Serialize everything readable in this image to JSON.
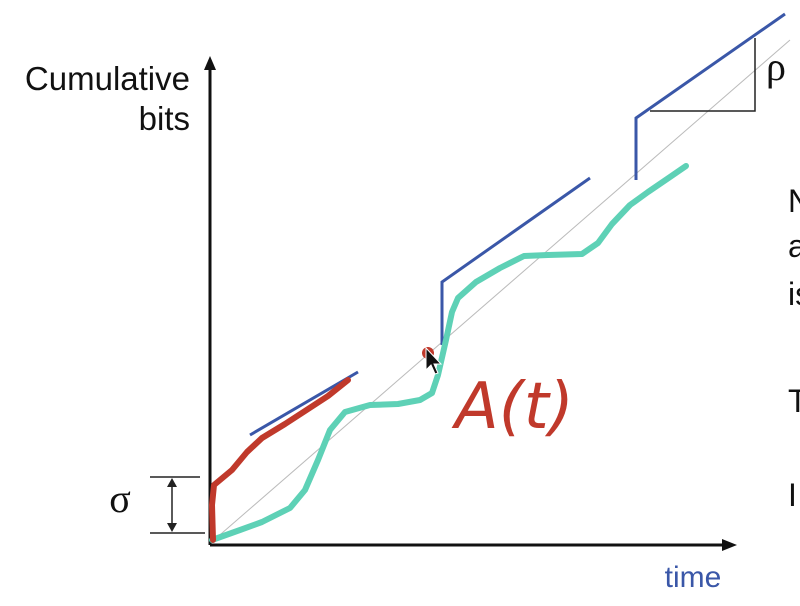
{
  "y_axis_label_line1": "Cumulative",
  "y_axis_label_line2": "bits",
  "x_axis_label": "time",
  "sigma_symbol": "σ",
  "rho_symbol": "ρ",
  "curve_label": "A(t)",
  "clipped_text_fragments": [
    "N",
    "a",
    "is",
    "T",
    "I"
  ],
  "colors": {
    "axis": "#111111",
    "envelope": "#3a57a8",
    "arrival_curve": "#5ed1b6",
    "annotation": "#c0392b",
    "x_label": "#3a57a8",
    "reference_line": "#bbbbbb"
  }
}
